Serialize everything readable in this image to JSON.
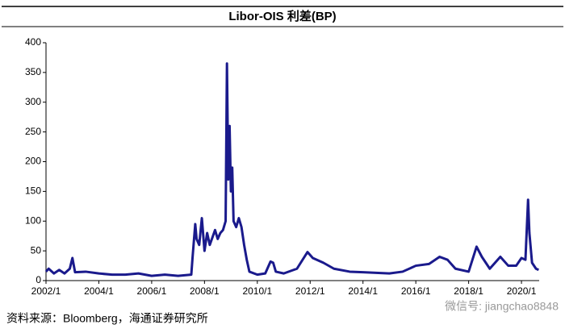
{
  "chart_data": {
    "type": "line",
    "title": "Libor-OIS 利差(BP)",
    "source": "资料来源：Bloomberg，海通证券研究所",
    "watermark": "微信号: jiangchao8848",
    "xlim": [
      2002,
      2020.67
    ],
    "ylim": [
      0,
      400
    ],
    "xticks": [
      {
        "value": 2002,
        "label": "2002/1"
      },
      {
        "value": 2004,
        "label": "2004/1"
      },
      {
        "value": 2006,
        "label": "2006/1"
      },
      {
        "value": 2008,
        "label": "2008/1"
      },
      {
        "value": 2010,
        "label": "2010/1"
      },
      {
        "value": 2012,
        "label": "2012/1"
      },
      {
        "value": 2014,
        "label": "2014/1"
      },
      {
        "value": 2016,
        "label": "2016/1"
      },
      {
        "value": 2018,
        "label": "2018/1"
      },
      {
        "value": 2020,
        "label": "2020/1"
      }
    ],
    "yticks": [
      0,
      50,
      100,
      150,
      200,
      250,
      300,
      350,
      400
    ],
    "grid": false,
    "series": [
      {
        "color": "#1a1a8c",
        "x": [
          2002.0,
          2002.1,
          2002.3,
          2002.5,
          2002.7,
          2002.9,
          2003.0,
          2003.1,
          2003.5,
          2004.0,
          2004.5,
          2005.0,
          2005.5,
          2006.0,
          2006.5,
          2007.0,
          2007.5,
          2007.55,
          2007.65,
          2007.7,
          2007.8,
          2007.9,
          2008.0,
          2008.1,
          2008.2,
          2008.4,
          2008.5,
          2008.6,
          2008.7,
          2008.8,
          2008.85,
          2008.9,
          2008.95,
          2009.0,
          2009.05,
          2009.1,
          2009.2,
          2009.3,
          2009.4,
          2009.5,
          2009.6,
          2009.7,
          2010.0,
          2010.3,
          2010.5,
          2010.6,
          2010.7,
          2011.0,
          2011.5,
          2011.9,
          2012.1,
          2012.5,
          2012.9,
          2013.5,
          2014.0,
          2015.0,
          2015.5,
          2016.0,
          2016.5,
          2016.9,
          2017.2,
          2017.5,
          2018.0,
          2018.3,
          2018.5,
          2018.8,
          2019.2,
          2019.5,
          2019.8,
          2020.0,
          2020.15,
          2020.25,
          2020.3,
          2020.4,
          2020.55,
          2020.65
        ],
        "values": [
          15,
          20,
          12,
          18,
          12,
          20,
          38,
          14,
          15,
          12,
          10,
          10,
          12,
          8,
          10,
          8,
          10,
          40,
          95,
          70,
          60,
          105,
          50,
          80,
          60,
          85,
          70,
          80,
          85,
          100,
          365,
          170,
          260,
          150,
          190,
          100,
          90,
          105,
          90,
          60,
          35,
          15,
          10,
          12,
          32,
          30,
          15,
          12,
          20,
          48,
          38,
          30,
          20,
          15,
          14,
          12,
          15,
          25,
          28,
          40,
          35,
          20,
          15,
          57,
          40,
          20,
          40,
          25,
          25,
          38,
          35,
          136,
          80,
          30,
          20,
          18
        ]
      }
    ]
  }
}
